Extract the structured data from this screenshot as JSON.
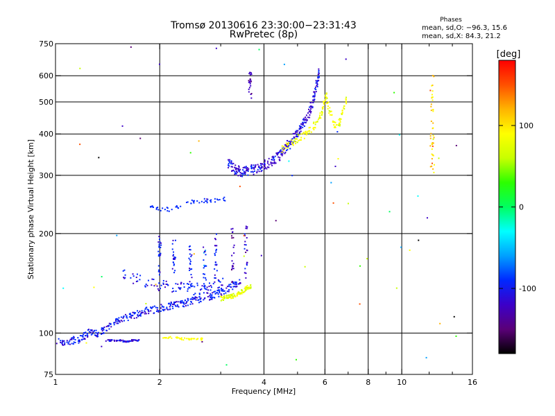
{
  "chart_data": {
    "type": "scatter",
    "title": "Tromsø 20130616 23:30:00−23:31:43",
    "subtitle": "RwPretec (8p)",
    "xlabel": "Frequency [MHz]",
    "ylabel": "Stationary phase Virtual Height [km]",
    "x_scale": "log",
    "y_scale": "log",
    "xlim": [
      1,
      16
    ],
    "ylim": [
      75,
      750
    ],
    "x_ticks": [
      {
        "value": 1,
        "label": "1"
      },
      {
        "value": 2,
        "label": "2"
      },
      {
        "value": 4,
        "label": "4"
      },
      {
        "value": 6,
        "label": "6"
      },
      {
        "value": 8,
        "label": "8"
      },
      {
        "value": 10,
        "label": "10"
      },
      {
        "value": 16,
        "label": "16"
      }
    ],
    "x_minor_ticks": [
      3,
      5,
      7,
      9,
      12,
      14
    ],
    "x_gridlines": [
      2,
      4,
      6,
      8,
      10
    ],
    "y_ticks": [
      {
        "value": 75,
        "label": "75"
      },
      {
        "value": 100,
        "label": "100"
      },
      {
        "value": 200,
        "label": "200"
      },
      {
        "value": 300,
        "label": "300"
      },
      {
        "value": 400,
        "label": "400"
      },
      {
        "value": 500,
        "label": "500"
      },
      {
        "value": 600,
        "label": "600"
      },
      {
        "value": 750,
        "label": "750"
      }
    ],
    "y_gridlines": [
      100,
      200,
      300,
      400,
      500,
      600
    ],
    "grid": true,
    "phase_stats": {
      "heading": "Phases",
      "line1": "mean, sd,O: −96.3, 15.6",
      "line2": "mean, sd,X:  84.3, 21.2"
    },
    "colorbar": {
      "unit": "[deg]",
      "range": [
        -180,
        180
      ],
      "ticks": [
        {
          "value": 100,
          "label": "100"
        },
        {
          "value": 0,
          "label": "0"
        },
        {
          "value": -100,
          "label": "-100"
        }
      ],
      "colors": [
        "#000000",
        "#5a0078",
        "#3c00c8",
        "#0028ff",
        "#00a0ff",
        "#00ffff",
        "#00ff60",
        "#2cff00",
        "#c8ff00",
        "#ffff00",
        "#ffb400",
        "#ff5000",
        "#ff0000"
      ]
    },
    "o_trace": [
      [
        1.0,
        94
      ],
      [
        1.06,
        94
      ],
      [
        1.12,
        95
      ],
      [
        1.18,
        96
      ],
      [
        1.22,
        99
      ],
      [
        1.27,
        101
      ],
      [
        1.32,
        99
      ],
      [
        1.38,
        102
      ],
      [
        1.45,
        106
      ],
      [
        1.52,
        109
      ],
      [
        1.6,
        111
      ],
      [
        1.68,
        113
      ],
      [
        1.76,
        115
      ],
      [
        1.85,
        117
      ],
      [
        1.95,
        118
      ],
      [
        2.05,
        120
      ],
      [
        2.15,
        121
      ],
      [
        2.25,
        122
      ],
      [
        2.35,
        123
      ],
      [
        2.45,
        125
      ],
      [
        2.55,
        126
      ],
      [
        2.7,
        128
      ],
      [
        2.85,
        130
      ],
      [
        3.0,
        133
      ],
      [
        3.15,
        136
      ],
      [
        3.3,
        140
      ],
      [
        3.45,
        145
      ]
    ],
    "o_trace_mid": [
      [
        1.55,
        150
      ],
      [
        1.7,
        146
      ],
      [
        1.85,
        143
      ],
      [
        2.0,
        140
      ],
      [
        2.15,
        138
      ],
      [
        2.3,
        137
      ],
      [
        2.45,
        136
      ],
      [
        2.6,
        136
      ],
      [
        2.75,
        137
      ],
      [
        2.9,
        139
      ],
      [
        3.05,
        141
      ]
    ],
    "o_upper": [
      [
        1.85,
        240
      ],
      [
        1.95,
        238
      ],
      [
        2.05,
        236
      ],
      [
        2.2,
        238
      ],
      [
        2.35,
        244
      ],
      [
        2.5,
        250
      ],
      [
        2.65,
        252
      ],
      [
        2.8,
        250
      ],
      [
        2.95,
        252
      ],
      [
        3.1,
        255
      ]
    ],
    "o_upper_branch": [
      [
        3.15,
        330
      ],
      [
        3.25,
        315
      ],
      [
        3.35,
        310
      ],
      [
        3.45,
        308
      ],
      [
        3.55,
        310
      ],
      [
        3.7,
        312
      ],
      [
        3.85,
        316
      ],
      [
        4.0,
        322
      ],
      [
        4.15,
        328
      ],
      [
        4.3,
        335
      ],
      [
        4.45,
        345
      ],
      [
        4.6,
        360
      ],
      [
        4.75,
        375
      ],
      [
        4.9,
        392
      ],
      [
        5.05,
        408
      ],
      [
        5.2,
        428
      ],
      [
        5.35,
        455
      ],
      [
        5.5,
        490
      ],
      [
        5.6,
        530
      ],
      [
        5.7,
        570
      ],
      [
        5.78,
        615
      ]
    ],
    "o_flat_low": [
      [
        1.4,
        95
      ],
      [
        1.45,
        95
      ],
      [
        1.5,
        95
      ],
      [
        1.55,
        95
      ],
      [
        1.6,
        94
      ],
      [
        1.65,
        95
      ],
      [
        1.7,
        95
      ],
      [
        1.75,
        95
      ]
    ],
    "x_trace_low": [
      [
        2.0,
        97
      ],
      [
        2.1,
        97
      ],
      [
        2.2,
        97
      ],
      [
        2.3,
        96
      ],
      [
        2.4,
        96
      ],
      [
        2.5,
        96
      ],
      [
        2.6,
        96
      ],
      [
        2.7,
        96
      ]
    ],
    "x_trace_mid": [
      [
        3.0,
        127
      ],
      [
        3.1,
        128
      ],
      [
        3.2,
        129
      ],
      [
        3.3,
        130
      ],
      [
        3.4,
        132
      ],
      [
        3.5,
        135
      ],
      [
        3.6,
        137
      ],
      [
        3.7,
        139
      ]
    ],
    "x_upper_branch": [
      [
        4.5,
        360
      ],
      [
        4.7,
        370
      ],
      [
        4.9,
        380
      ],
      [
        5.1,
        390
      ],
      [
        5.3,
        400
      ],
      [
        5.5,
        415
      ],
      [
        5.7,
        435
      ],
      [
        5.85,
        460
      ],
      [
        5.95,
        490
      ],
      [
        6.05,
        520
      ],
      [
        6.2,
        470
      ],
      [
        6.35,
        430
      ],
      [
        6.5,
        415
      ],
      [
        6.65,
        440
      ],
      [
        6.8,
        475
      ],
      [
        6.95,
        520
      ]
    ],
    "vertical_streaks": [
      {
        "x": 2.0,
        "y_from": 150,
        "y_to": 200,
        "phase": -100
      },
      {
        "x": 2.2,
        "y_from": 150,
        "y_to": 195,
        "phase": -100
      },
      {
        "x": 2.45,
        "y_from": 135,
        "y_to": 190,
        "phase": -100
      },
      {
        "x": 2.7,
        "y_from": 135,
        "y_to": 185,
        "phase": -90
      },
      {
        "x": 2.9,
        "y_from": 140,
        "y_to": 200,
        "phase": -95
      },
      {
        "x": 3.25,
        "y_from": 140,
        "y_to": 210,
        "phase": -130
      },
      {
        "x": 3.55,
        "y_from": 145,
        "y_to": 215,
        "phase": -120
      },
      {
        "x": 3.65,
        "y_from": 500,
        "y_to": 620,
        "phase": -130
      },
      {
        "x": 12.2,
        "y_from": 290,
        "y_to": 610,
        "phase": 120
      },
      {
        "x": 12.3,
        "y_from": 290,
        "y_to": 610,
        "phase": 90
      }
    ]
  }
}
